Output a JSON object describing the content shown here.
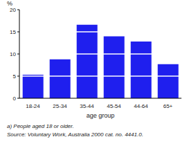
{
  "chart_data": {
    "type": "bar",
    "y_label": "%",
    "x_label": "age group",
    "categories": [
      "18-24",
      "25-34",
      "35-44",
      "45-54",
      "44-64",
      "65+"
    ],
    "values": [
      5.3,
      8.8,
      16.6,
      14.0,
      12.8,
      7.7
    ],
    "color": "#1f1fee",
    "ylim": [
      0,
      20
    ],
    "yticks": [
      0,
      5,
      10,
      15,
      20
    ],
    "grid": true,
    "annotations": [
      "a) People aged 18 or older.",
      "Source: Voluntary Work, Australia 2000 cat. no. 4441.0."
    ]
  }
}
